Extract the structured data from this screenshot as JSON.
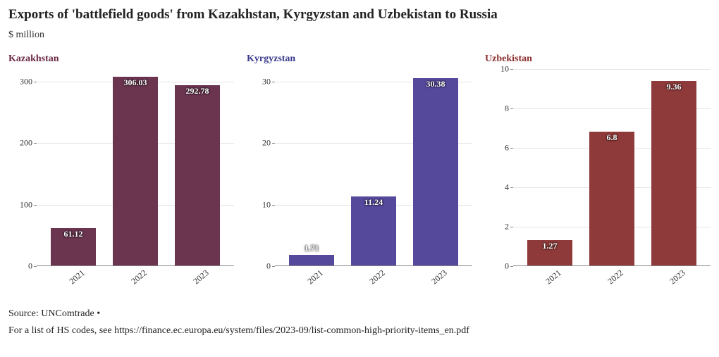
{
  "title": "Exports of 'battlefield goods' from Kazakhstan, Kyrgyzstan and Uzbekistan to Russia",
  "subtitle": "$ million",
  "source": "Source: UNComtrade  •",
  "footnote": "For a list of HS codes, see https://finance.ec.europa.eu/system/files/2023-09/list-common-high-priority-items_en.pdf",
  "background_color": "#ffffff",
  "grid_color": "#e5e5e5",
  "axis_color": "#888888",
  "title_fontsize": 19,
  "subtitle_fontsize": 14,
  "panel_title_fontsize": 14,
  "tick_fontsize": 12,
  "bar_label_fontsize": 12,
  "bar_label_color": "#ffffff",
  "font_family": "Georgia, serif",
  "panels": [
    {
      "name": "Kazakhstan",
      "title_color": "#6b2a46",
      "bar_color": "#6b3550",
      "categories": [
        "2021",
        "2022",
        "2023"
      ],
      "values": [
        61.12,
        306.03,
        292.78
      ],
      "value_labels": [
        "61.12",
        "306.03",
        "292.78"
      ],
      "ymin": 0,
      "ymax": 320,
      "yticks": [
        0,
        100,
        200,
        300
      ],
      "bar_width": 0.72
    },
    {
      "name": "Kyrgyzstan",
      "title_color": "#3b3a8c",
      "bar_color": "#55499c",
      "categories": [
        "2021",
        "2022",
        "2023"
      ],
      "values": [
        1.71,
        11.24,
        30.38
      ],
      "value_labels": [
        "1.71",
        "11.24",
        "30.38"
      ],
      "ymin": 0,
      "ymax": 32,
      "yticks": [
        0,
        10,
        20,
        30
      ],
      "bar_width": 0.72
    },
    {
      "name": "Uzbekistan",
      "title_color": "#8c2f2f",
      "bar_color": "#8f3a3a",
      "categories": [
        "2021",
        "2022",
        "2023"
      ],
      "values": [
        1.27,
        6.8,
        9.36
      ],
      "value_labels": [
        "1.27",
        "6.8",
        "9.36"
      ],
      "ymin": 0,
      "ymax": 10,
      "yticks": [
        0,
        2,
        4,
        6,
        8,
        10
      ],
      "bar_width": 0.72
    }
  ]
}
